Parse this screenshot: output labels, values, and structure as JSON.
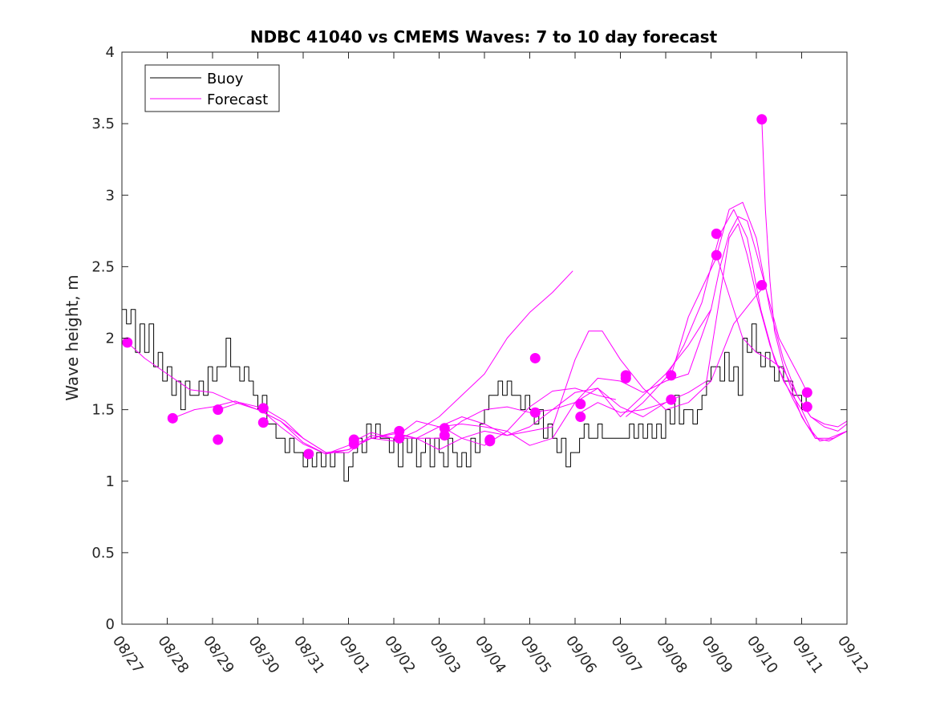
{
  "chart_data": {
    "type": "line",
    "title": "NDBC 41040 vs CMEMS Waves: 7 to 10 day forecast",
    "xlabel": "",
    "ylabel": "Wave height, m",
    "ylim": [
      0,
      4
    ],
    "xlim_days": [
      0,
      16
    ],
    "yticks": [
      "0",
      "0.5",
      "1",
      "1.5",
      "2",
      "2.5",
      "3",
      "3.5",
      "4"
    ],
    "xtick_labels": [
      "08/27",
      "08/28",
      "08/29",
      "08/30",
      "08/31",
      "09/01",
      "09/02",
      "09/03",
      "09/04",
      "09/05",
      "09/06",
      "09/07",
      "09/08",
      "09/09",
      "09/10",
      "09/11",
      "09/12"
    ],
    "colors": {
      "buoy": "#000000",
      "forecast": "#ff00ff"
    },
    "legend": {
      "location": "top-left",
      "entries": [
        "Buoy",
        "Forecast"
      ]
    },
    "series": [
      {
        "name": "Buoy",
        "x": [
          0,
          0.1,
          0.2,
          0.3,
          0.4,
          0.5,
          0.6,
          0.7,
          0.8,
          0.9,
          1.0,
          1.1,
          1.2,
          1.3,
          1.4,
          1.5,
          1.6,
          1.7,
          1.8,
          1.9,
          2.0,
          2.1,
          2.2,
          2.3,
          2.4,
          2.5,
          2.6,
          2.7,
          2.8,
          2.9,
          3.0,
          3.1,
          3.2,
          3.3,
          3.4,
          3.5,
          3.6,
          3.7,
          3.8,
          3.9,
          4.0,
          4.1,
          4.2,
          4.3,
          4.4,
          4.5,
          4.6,
          4.7,
          4.8,
          4.9,
          5.0,
          5.1,
          5.2,
          5.3,
          5.4,
          5.5,
          5.6,
          5.7,
          5.8,
          5.9,
          6.0,
          6.1,
          6.2,
          6.3,
          6.4,
          6.5,
          6.6,
          6.7,
          6.8,
          6.9,
          7.0,
          7.1,
          7.2,
          7.3,
          7.4,
          7.5,
          7.6,
          7.7,
          7.8,
          7.9,
          8.0,
          8.1,
          8.2,
          8.3,
          8.4,
          8.5,
          8.6,
          8.7,
          8.8,
          8.9,
          9.0,
          9.1,
          9.2,
          9.3,
          9.4,
          9.5,
          9.6,
          9.7,
          9.8,
          9.9,
          10.0,
          10.1,
          10.2,
          10.3,
          10.4,
          10.5,
          10.6,
          10.7,
          10.8,
          10.9,
          11.0,
          11.1,
          11.2,
          11.3,
          11.4,
          11.5,
          11.6,
          11.7,
          11.8,
          11.9,
          12.0,
          12.1,
          12.2,
          12.3,
          12.4,
          12.5,
          12.6,
          12.7,
          12.8,
          12.9,
          13.0,
          13.1,
          13.2,
          13.3,
          13.4,
          13.5,
          13.6,
          13.7,
          13.8,
          13.9,
          14.0,
          14.1,
          14.2,
          14.3,
          14.4,
          14.5,
          14.6,
          14.7,
          14.8,
          14.9,
          15.0,
          15.1,
          15.2
        ],
        "y": [
          2.2,
          2.1,
          2.2,
          1.9,
          2.1,
          1.9,
          2.1,
          1.8,
          1.9,
          1.7,
          1.8,
          1.6,
          1.7,
          1.5,
          1.7,
          1.6,
          1.6,
          1.7,
          1.6,
          1.8,
          1.7,
          1.8,
          1.8,
          2.0,
          1.8,
          1.8,
          1.7,
          1.8,
          1.7,
          1.6,
          1.5,
          1.6,
          1.4,
          1.4,
          1.3,
          1.3,
          1.2,
          1.3,
          1.2,
          1.2,
          1.1,
          1.2,
          1.1,
          1.2,
          1.1,
          1.2,
          1.1,
          1.2,
          1.2,
          1.0,
          1.1,
          1.2,
          1.3,
          1.2,
          1.4,
          1.3,
          1.4,
          1.3,
          1.3,
          1.2,
          1.3,
          1.1,
          1.3,
          1.2,
          1.3,
          1.1,
          1.2,
          1.3,
          1.1,
          1.3,
          1.2,
          1.1,
          1.3,
          1.2,
          1.1,
          1.2,
          1.1,
          1.3,
          1.2,
          1.4,
          1.5,
          1.6,
          1.6,
          1.7,
          1.6,
          1.7,
          1.6,
          1.6,
          1.5,
          1.6,
          1.5,
          1.4,
          1.5,
          1.3,
          1.4,
          1.3,
          1.2,
          1.3,
          1.1,
          1.2,
          1.2,
          1.3,
          1.4,
          1.3,
          1.3,
          1.4,
          1.3,
          1.3,
          1.3,
          1.3,
          1.3,
          1.3,
          1.4,
          1.3,
          1.4,
          1.3,
          1.4,
          1.3,
          1.4,
          1.3,
          1.5,
          1.4,
          1.6,
          1.4,
          1.5,
          1.5,
          1.4,
          1.5,
          1.6,
          1.7,
          1.8,
          1.8,
          1.7,
          1.9,
          1.7,
          1.8,
          1.6,
          2.0,
          1.9,
          2.1,
          1.9,
          1.8,
          1.9,
          1.8,
          1.7,
          1.8,
          1.7,
          1.7,
          1.6,
          1.6,
          1.5,
          1.6,
          1.6
        ]
      },
      {
        "name": "Forecast",
        "x": [
          0.12,
          0.5,
          1.0,
          1.5,
          2.0,
          2.5,
          3.0,
          3.5,
          4.0,
          4.5,
          5.0,
          5.5,
          6.0,
          6.5,
          7.0,
          7.5,
          8.0,
          8.5,
          9.0,
          9.5,
          9.95
        ],
        "y": [
          1.97,
          1.86,
          1.75,
          1.64,
          1.62,
          1.55,
          1.5,
          1.42,
          1.27,
          1.19,
          1.25,
          1.3,
          1.28,
          1.35,
          1.45,
          1.6,
          1.75,
          2.0,
          2.18,
          2.32,
          2.47
        ]
      },
      {
        "name": "Forecast",
        "x": [
          1.12,
          1.6,
          2.0,
          2.5,
          3.0,
          3.5,
          4.0,
          4.5,
          5.0,
          5.5,
          6.0,
          6.5,
          7.0,
          7.5,
          8.0,
          8.5,
          9.0,
          9.5,
          10.0,
          10.5,
          10.9
        ],
        "y": [
          1.44,
          1.5,
          1.52,
          1.56,
          1.5,
          1.42,
          1.3,
          1.2,
          1.22,
          1.3,
          1.33,
          1.3,
          1.38,
          1.4,
          1.38,
          1.35,
          1.52,
          1.63,
          1.65,
          1.6,
          1.57
        ]
      },
      {
        "name": "Forecast",
        "x": [
          2.12,
          2.6,
          3.0,
          3.5,
          4.0,
          4.5,
          5.0,
          5.5,
          6.0,
          6.5,
          7.0,
          7.5,
          8.0,
          8.5,
          9.0,
          9.5,
          10.0,
          10.5,
          11.0,
          11.5,
          12.0
        ],
        "y": [
          1.5,
          1.55,
          1.52,
          1.38,
          1.26,
          1.19,
          1.22,
          1.3,
          1.34,
          1.3,
          1.3,
          1.42,
          1.5,
          1.52,
          1.48,
          1.5,
          1.55,
          1.65,
          1.52,
          1.45,
          1.55
        ]
      },
      {
        "name": "Forecast",
        "x": [
          3.12,
          3.6,
          4.0,
          4.5,
          5.0,
          5.5,
          6.0,
          6.5,
          7.0,
          7.5,
          8.0,
          8.5,
          9.0,
          9.5,
          10.0,
          10.5,
          11.0,
          11.5,
          12.0,
          12.5,
          13.0
        ],
        "y": [
          1.51,
          1.42,
          1.3,
          1.2,
          1.2,
          1.32,
          1.3,
          1.42,
          1.38,
          1.45,
          1.4,
          1.32,
          1.38,
          1.5,
          1.62,
          1.65,
          1.45,
          1.6,
          1.75,
          1.95,
          2.2
        ]
      },
      {
        "name": "Forecast",
        "x": [
          5.12,
          5.5,
          6.0,
          6.5,
          7.0,
          7.5,
          8.0,
          8.5,
          9.0,
          9.5,
          10.0,
          10.3,
          10.6,
          11.0,
          11.5,
          12.0,
          12.5,
          13.0,
          13.5,
          14.0,
          14.2
        ],
        "y": [
          1.28,
          1.34,
          1.3,
          1.3,
          1.22,
          1.3,
          1.35,
          1.32,
          1.35,
          1.38,
          1.85,
          2.05,
          2.05,
          1.85,
          1.65,
          1.5,
          1.55,
          1.7,
          2.1,
          2.3,
          2.37
        ]
      },
      {
        "name": "Forecast",
        "x": [
          7.12,
          7.5,
          8.0,
          8.5,
          9.0,
          9.5,
          10.0,
          10.5,
          11.0,
          11.5,
          12.0,
          12.5,
          13.0,
          13.2,
          13.4,
          13.6,
          13.8,
          14.0,
          14.5,
          15.0,
          15.12
        ],
        "y": [
          1.37,
          1.3,
          1.25,
          1.35,
          1.25,
          1.3,
          1.55,
          1.72,
          1.7,
          1.62,
          1.7,
          1.75,
          2.2,
          2.5,
          2.73,
          2.85,
          2.82,
          2.6,
          2.0,
          1.7,
          1.62
        ]
      },
      {
        "name": "Forecast",
        "x": [
          10.12,
          10.5,
          11.0,
          11.5,
          12.0,
          12.5,
          12.9,
          13.2,
          13.4,
          13.6,
          13.8,
          14.0,
          14.3,
          14.6,
          15.0,
          15.3,
          15.6,
          16.0
        ],
        "y": [
          1.48,
          1.55,
          1.48,
          1.5,
          1.55,
          1.62,
          1.7,
          2.3,
          2.7,
          2.8,
          2.58,
          2.3,
          1.95,
          1.7,
          1.5,
          1.3,
          1.3,
          1.35
        ]
      },
      {
        "name": "Forecast",
        "x": [
          11.12,
          11.5,
          12.0,
          12.4,
          12.8,
          13.0,
          13.2,
          13.5,
          13.8,
          14.1,
          14.4,
          14.8,
          15.1,
          15.4,
          15.7,
          16.0
        ],
        "y": [
          1.45,
          1.55,
          1.72,
          1.95,
          2.25,
          2.5,
          2.73,
          2.9,
          2.7,
          2.2,
          1.85,
          1.58,
          1.4,
          1.28,
          1.3,
          1.35
        ]
      },
      {
        "name": "Forecast",
        "x": [
          12.12,
          12.5,
          12.8,
          13.1,
          13.4,
          13.7,
          14.0,
          14.3,
          14.6,
          14.9,
          15.2,
          15.5,
          15.8,
          16.0
        ],
        "y": [
          1.74,
          2.15,
          2.35,
          2.55,
          2.9,
          2.95,
          2.7,
          2.2,
          1.85,
          1.6,
          1.45,
          1.38,
          1.35,
          1.4
        ]
      },
      {
        "name": "Forecast",
        "x": [
          13.12,
          13.4,
          13.7,
          14.0,
          14.3,
          14.6,
          14.9,
          15.2,
          15.5,
          15.8,
          16.0
        ],
        "y": [
          2.58,
          2.3,
          2.0,
          1.9,
          1.85,
          1.78,
          1.6,
          1.45,
          1.4,
          1.38,
          1.42
        ]
      },
      {
        "name": "Forecast",
        "x": [
          14.12,
          14.2,
          14.3,
          14.4,
          14.6,
          14.8,
          15.0,
          15.3,
          15.6,
          16.0
        ],
        "y": [
          3.53,
          2.9,
          2.4,
          2.05,
          1.8,
          1.62,
          1.45,
          1.3,
          1.28,
          1.35
        ]
      }
    ],
    "markers": {
      "x": [
        0.12,
        1.12,
        2.12,
        2.12,
        3.12,
        3.12,
        4.12,
        5.12,
        5.12,
        6.12,
        6.12,
        7.12,
        7.12,
        8.12,
        8.12,
        9.12,
        9.12,
        10.12,
        10.12,
        11.12,
        11.12,
        12.12,
        12.12,
        13.12,
        13.12,
        14.12,
        14.12,
        15.12,
        15.12
      ],
      "y": [
        1.97,
        1.44,
        1.5,
        1.29,
        1.51,
        1.41,
        1.19,
        1.29,
        1.26,
        1.35,
        1.3,
        1.37,
        1.32,
        1.29,
        1.28,
        1.86,
        1.48,
        1.54,
        1.45,
        1.74,
        1.72,
        1.74,
        1.57,
        2.73,
        2.58,
        3.53,
        2.37,
        1.62,
        1.52
      ]
    }
  }
}
